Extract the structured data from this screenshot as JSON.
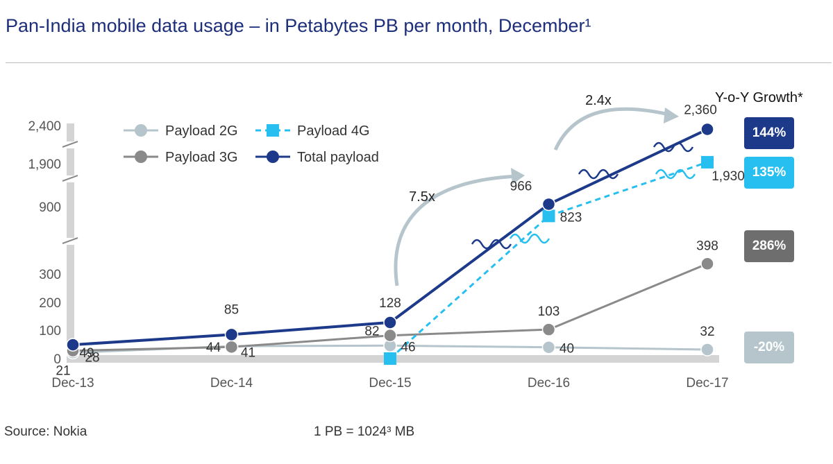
{
  "title": "Pan-India mobile data usage – in Petabytes PB per month, December¹",
  "source": "Source: Nokia",
  "unit_note": "1 PB =  1024³ MB",
  "growth": {
    "title": "Y-o-Y Growth*",
    "badges": [
      {
        "series": "Total payload",
        "value": "144%",
        "color": "#1d3a8a"
      },
      {
        "series": "Payload 4G",
        "value": "135%",
        "color": "#27bff0"
      },
      {
        "series": "Payload 3G",
        "value": "286%",
        "color": "#6e6e6e"
      },
      {
        "series": "Payload 2G",
        "value": "-20%",
        "color": "#b5c5cb"
      }
    ]
  },
  "chart_data": {
    "type": "line",
    "categories": [
      "Dec-13",
      "Dec-14",
      "Dec-15",
      "Dec-16",
      "Dec-17"
    ],
    "yticks": [
      "0",
      "100",
      "200",
      "300",
      "900",
      "1,900",
      "2,400"
    ],
    "axis_break": true,
    "legend_position": "top-left",
    "series": [
      {
        "name": "Payload 2G",
        "color": "#b5c5cb",
        "dash": false,
        "marker": "circle",
        "values": [
          21,
          44,
          46,
          40,
          32
        ],
        "labels": [
          "21",
          "44",
          "46",
          "40",
          "32"
        ]
      },
      {
        "name": "Payload 3G",
        "color": "#8a8a8a",
        "dash": false,
        "marker": "circle",
        "values": [
          28,
          41,
          82,
          103,
          398
        ],
        "labels": [
          "28",
          "41",
          "82",
          "103",
          "398"
        ]
      },
      {
        "name": "Payload 4G",
        "color": "#27bff0",
        "dash": true,
        "marker": "square",
        "values": [
          null,
          null,
          0,
          823,
          1930
        ],
        "labels": [
          null,
          null,
          null,
          "823",
          "1,930"
        ]
      },
      {
        "name": "Total payload",
        "color": "#1d3a8a",
        "dash": false,
        "marker": "circle",
        "values": [
          49,
          85,
          128,
          966,
          2360
        ],
        "labels": [
          "49",
          "85",
          "128",
          "966",
          "2,360"
        ]
      }
    ],
    "annotations": [
      {
        "text": "7.5x",
        "from": "Dec-15",
        "to": "Dec-16"
      },
      {
        "text": "2.4x",
        "from": "Dec-16",
        "to": "Dec-17"
      }
    ]
  }
}
